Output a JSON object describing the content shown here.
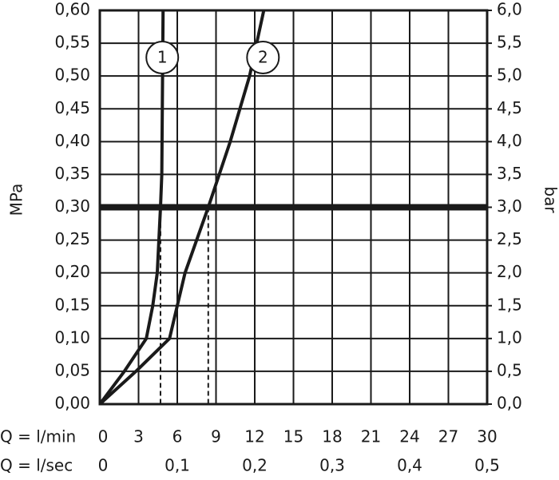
{
  "chart_data": {
    "type": "line",
    "ylabel": "MPa",
    "y2label": "bar",
    "xlabel": "Q = l/min",
    "x2label": "Q = l/sec",
    "xlim": [
      0,
      30
    ],
    "xticks": [
      0,
      3,
      6,
      9,
      12,
      15,
      18,
      21,
      24,
      27,
      30
    ],
    "x2lim": [
      0,
      0.5
    ],
    "x2ticks": [
      0,
      {
        "value": 0.1,
        "label": "0,1"
      },
      {
        "value": 0.2,
        "label": "0,2"
      },
      {
        "value": 0.3,
        "label": "0,3"
      },
      {
        "value": 0.4,
        "label": "0,4"
      },
      {
        "value": 0.5,
        "label": "0,5"
      }
    ],
    "ylim": [
      0,
      0.6
    ],
    "yticks": [
      {
        "value": 0,
        "label": "0,00"
      },
      {
        "value": 0.05,
        "label": "0,05"
      },
      {
        "value": 0.1,
        "label": "0,10"
      },
      {
        "value": 0.15,
        "label": "0,15"
      },
      {
        "value": 0.2,
        "label": "0,20"
      },
      {
        "value": 0.25,
        "label": "0,25"
      },
      {
        "value": 0.3,
        "label": "0,30"
      },
      {
        "value": 0.35,
        "label": "0,35"
      },
      {
        "value": 0.4,
        "label": "0,40"
      },
      {
        "value": 0.45,
        "label": "0,45"
      },
      {
        "value": 0.5,
        "label": "0,50"
      },
      {
        "value": 0.55,
        "label": "0,55"
      },
      {
        "value": 0.6,
        "label": "0,60"
      }
    ],
    "y2lim": [
      0,
      6
    ],
    "y2ticks": [
      {
        "value": 0,
        "label": "0,0"
      },
      {
        "value": 0.5,
        "label": "0,5"
      },
      {
        "value": 1,
        "label": "1,0"
      },
      {
        "value": 1.5,
        "label": "1,5"
      },
      {
        "value": 2,
        "label": "2,0"
      },
      {
        "value": 2.5,
        "label": "2,5"
      },
      {
        "value": 3,
        "label": "3,0"
      },
      {
        "value": 3.5,
        "label": "3,5"
      },
      {
        "value": 4,
        "label": "4,0"
      },
      {
        "value": 4.5,
        "label": "4,5"
      },
      {
        "value": 5,
        "label": "5,0"
      },
      {
        "value": 5.5,
        "label": "5,5"
      },
      {
        "value": 6,
        "label": "6,0"
      }
    ],
    "grid": true,
    "reference_y": 0.3,
    "drop_lines_x": [
      4.7,
      8.4
    ],
    "series": [
      {
        "name": "1",
        "color": "#1a1a1a",
        "x": [
          0,
          1.9,
          3.6,
          4.1,
          4.45,
          4.7,
          4.8,
          4.9
        ],
        "values": [
          0,
          0.05,
          0.1,
          0.15,
          0.2,
          0.3,
          0.35,
          0.6
        ]
      },
      {
        "name": "2",
        "color": "#1a1a1a",
        "x": [
          0,
          2.8,
          5.4,
          6.0,
          6.6,
          8.4,
          10.1,
          11.6,
          12.7
        ],
        "values": [
          0,
          0.05,
          0.1,
          0.15,
          0.2,
          0.3,
          0.4,
          0.5,
          0.6
        ]
      }
    ]
  }
}
